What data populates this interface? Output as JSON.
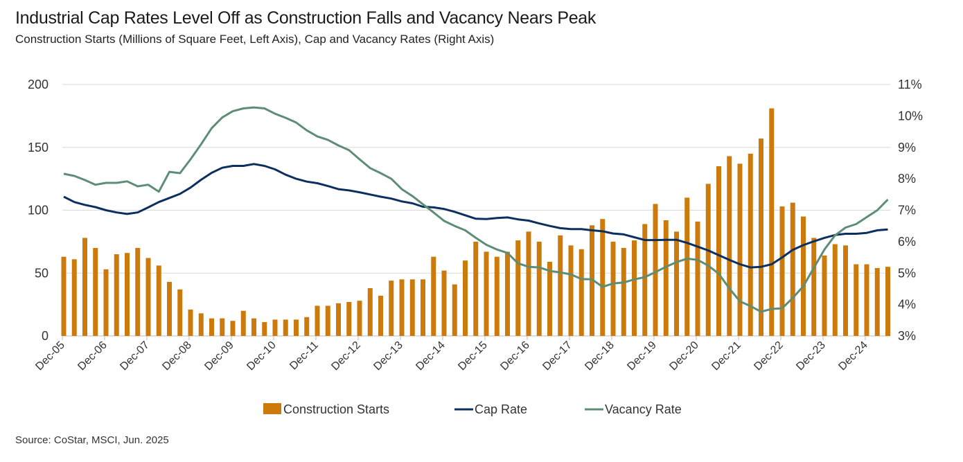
{
  "chart_data": {
    "type": "bar",
    "title": "Industrial Cap Rates Level Off as Construction Falls and Vacancy Nears Peak",
    "subtitle": "Construction Starts (Millions of Square Feet, Left Axis), Cap and Vacancy Rates (Right Axis)",
    "source": "Source: CoStar, MSCI, Jun. 2025",
    "frequency": "quarterly, Q4 2005 - Q2 2025",
    "x_tick_labels": [
      "Dec-05",
      "Dec-06",
      "Dec-07",
      "Dec-08",
      "Dec-09",
      "Dec-10",
      "Dec-11",
      "Dec-12",
      "Dec-13",
      "Dec-14",
      "Dec-15",
      "Dec-16",
      "Dec-17",
      "Dec-18",
      "Dec-19",
      "Dec-20",
      "Dec-21",
      "Dec-22",
      "Dec-23",
      "Dec-24"
    ],
    "y_left": {
      "ylim": [
        0,
        200
      ],
      "ticks": [
        "0",
        "50",
        "100",
        "150",
        "200"
      ],
      "tick_values": [
        0,
        50,
        100,
        150,
        200
      ]
    },
    "y_right": {
      "ylim": [
        3,
        11
      ],
      "ticks": [
        "3%",
        "4%",
        "5%",
        "6%",
        "7%",
        "8%",
        "9%",
        "10%",
        "11%"
      ],
      "tick_values": [
        3,
        4,
        5,
        6,
        7,
        8,
        9,
        10,
        11
      ]
    },
    "grid": true,
    "legend_position": "bottom",
    "series": [
      {
        "name": "Construction Starts",
        "type": "bar",
        "axis": "left",
        "color": "#CC7A0C",
        "values": [
          63,
          61,
          78,
          70,
          53,
          65,
          66,
          70,
          62,
          56,
          43,
          37,
          21,
          18,
          14,
          14,
          12,
          20,
          14,
          11,
          13,
          13,
          13,
          15,
          24,
          24,
          26,
          27,
          28,
          38,
          32,
          44,
          45,
          45,
          45,
          63,
          52,
          41,
          60,
          75,
          67,
          63,
          67,
          76,
          83,
          75,
          59,
          80,
          72,
          69,
          88,
          93,
          75,
          70,
          76,
          89,
          105,
          92,
          83,
          110,
          91,
          121,
          135,
          143,
          137,
          145,
          157,
          181,
          103,
          106,
          95,
          78,
          64,
          73,
          72,
          57,
          57,
          54,
          55
        ]
      },
      {
        "name": "Cap Rate",
        "type": "line",
        "axis": "right",
        "color": "#0B2F5E",
        "values": [
          7.43,
          7.26,
          7.17,
          7.1,
          7.0,
          6.93,
          6.88,
          6.93,
          7.09,
          7.26,
          7.39,
          7.52,
          7.72,
          7.97,
          8.19,
          8.35,
          8.41,
          8.41,
          8.47,
          8.41,
          8.3,
          8.13,
          8.0,
          7.91,
          7.86,
          7.77,
          7.67,
          7.63,
          7.57,
          7.5,
          7.43,
          7.37,
          7.28,
          7.22,
          7.11,
          7.09,
          7.04,
          6.95,
          6.84,
          6.73,
          6.72,
          6.75,
          6.77,
          6.71,
          6.67,
          6.58,
          6.5,
          6.43,
          6.4,
          6.4,
          6.36,
          6.33,
          6.26,
          6.23,
          6.14,
          6.05,
          6.05,
          6.06,
          6.06,
          5.96,
          5.84,
          5.72,
          5.57,
          5.42,
          5.28,
          5.18,
          5.2,
          5.28,
          5.5,
          5.74,
          5.89,
          6.01,
          6.12,
          6.21,
          6.25,
          6.25,
          6.28,
          6.36,
          6.39
        ]
      },
      {
        "name": "Vacancy Rate",
        "type": "line",
        "axis": "right",
        "color": "#5E8D76",
        "values": [
          8.16,
          8.09,
          7.96,
          7.81,
          7.87,
          7.87,
          7.92,
          7.76,
          7.81,
          7.59,
          8.22,
          8.18,
          8.62,
          9.1,
          9.61,
          9.95,
          10.15,
          10.24,
          10.27,
          10.24,
          10.07,
          9.94,
          9.79,
          9.54,
          9.35,
          9.24,
          9.06,
          8.91,
          8.62,
          8.34,
          8.18,
          8.0,
          7.67,
          7.45,
          7.19,
          6.93,
          6.66,
          6.5,
          6.36,
          6.12,
          5.9,
          5.75,
          5.64,
          5.31,
          5.2,
          5.18,
          5.07,
          5.02,
          4.96,
          4.81,
          4.8,
          4.56,
          4.67,
          4.7,
          4.8,
          4.87,
          5.03,
          5.2,
          5.35,
          5.46,
          5.42,
          5.24,
          4.98,
          4.51,
          4.1,
          3.95,
          3.77,
          3.86,
          3.88,
          4.21,
          4.58,
          5.17,
          5.75,
          6.2,
          6.45,
          6.56,
          6.78,
          7.0,
          7.34
        ]
      }
    ]
  }
}
